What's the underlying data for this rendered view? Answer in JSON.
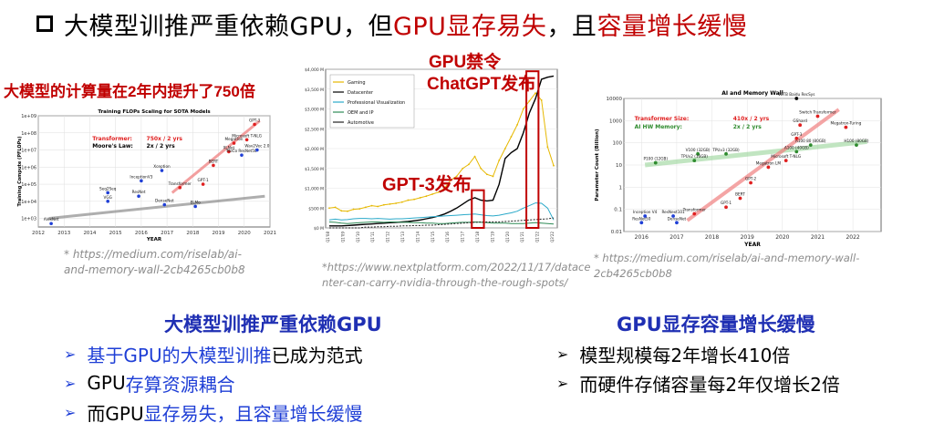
{
  "title": {
    "part1": "大模型训推严重依赖GPU，但",
    "part2": "GPU显存易失",
    "part3": "，且",
    "part4": "容量增长缓慢",
    "color_accent": "#c00000"
  },
  "left_figure": {
    "caption_top": "大模型的计算量在2年内提升了750倍",
    "citation_lines": [
      "* https://medium.com/riselab/ai-",
      "and-memory-wall-2cb4265cb0b8"
    ]
  },
  "center_figure": {
    "label_gpu_ban": "GPU禁令",
    "label_chatgpt": "ChatGPT发布",
    "label_gpt3": "GPT-3发布",
    "citation_lines": [
      "*https://www.nextplatform.com/2022/11/17/datace",
      "nter-can-carry-nvidia-through-the-rough-spots/"
    ]
  },
  "right_figure": {
    "citation": "* https://medium.com/riselab/ai-and-memory-wall-2cb4265cb0b8"
  },
  "left_section": {
    "heading": "大模型训推严重依赖GPU",
    "bullets": [
      {
        "blue": "基于GPU的大模型训推",
        "black": "已成为范式"
      },
      {
        "black": "GPU",
        "blue": "存算资源耦合"
      },
      {
        "black": "而GPU",
        "blue": "显存易失，且容量增长缓慢"
      }
    ]
  },
  "right_section": {
    "heading": "GPU显存容量增长缓慢",
    "bullets": [
      "模型规模每2年增长410倍",
      "而硬件存储容量每2年仅增长2倍"
    ]
  },
  "chart_data": [
    {
      "type": "scatter",
      "title": "Training FLOPs Scaling for SOTA Models",
      "xlabel": "YEAR",
      "ylabel": "Training Compute (PFLOPs)",
      "x_ticks": [
        "2012",
        "2013",
        "2014",
        "2015",
        "2016",
        "2017",
        "2018",
        "2019",
        "2020",
        "2021"
      ],
      "y_ticks": [
        "1e+03",
        "1e+04",
        "1e+05",
        "1e+06",
        "1e+07",
        "1e+08",
        "1e+09"
      ],
      "xlim": [
        2012,
        2021
      ],
      "ylim_exp": [
        2.5,
        9
      ],
      "annotations": [
        {
          "label": "Transformer:",
          "value": "750x / 2 yrs",
          "color": "#e02020"
        },
        {
          "label": "Moore's Law:",
          "value": "2x / 2 yrs",
          "color": "#000000"
        }
      ],
      "points": [
        {
          "name": "AlexNet",
          "x": 2012.5,
          "y": 2.7,
          "color": "#1f3fd6"
        },
        {
          "name": "VGG",
          "x": 2014.7,
          "y": 4.0,
          "color": "#1f3fd6"
        },
        {
          "name": "Seq2Seq",
          "x": 2014.7,
          "y": 4.5,
          "color": "#1f3fd6"
        },
        {
          "name": "ResNet",
          "x": 2015.9,
          "y": 4.3,
          "color": "#1f3fd6"
        },
        {
          "name": "InceptionV3",
          "x": 2016.0,
          "y": 5.2,
          "color": "#1f3fd6"
        },
        {
          "name": "Xception",
          "x": 2016.8,
          "y": 5.8,
          "color": "#1f3fd6"
        },
        {
          "name": "DenseNet",
          "x": 2016.9,
          "y": 3.8,
          "color": "#1f3fd6"
        },
        {
          "name": "ELMo",
          "x": 2018.1,
          "y": 3.7,
          "color": "#1f3fd6"
        },
        {
          "name": "Transformer",
          "x": 2017.5,
          "y": 4.8,
          "color": "#e02020"
        },
        {
          "name": "GPT-1",
          "x": 2018.4,
          "y": 5.0,
          "color": "#e02020"
        },
        {
          "name": "BERT",
          "x": 2018.8,
          "y": 6.1,
          "color": "#e02020"
        },
        {
          "name": "XLNet",
          "x": 2019.4,
          "y": 6.9,
          "color": "#e02020"
        },
        {
          "name": "Megatron",
          "x": 2019.6,
          "y": 7.4,
          "color": "#e02020"
        },
        {
          "name": "Microsoft T-NLG",
          "x": 2020.1,
          "y": 7.6,
          "color": "#e02020"
        },
        {
          "name": "GPT-3",
          "x": 2020.4,
          "y": 8.5,
          "color": "#e02020"
        },
        {
          "name": "MoCo ResNet50",
          "x": 2019.9,
          "y": 6.7,
          "color": "#1f3fd6"
        },
        {
          "name": "Wav2Vec 2.0",
          "x": 2020.5,
          "y": 7.0,
          "color": "#1f3fd6"
        }
      ]
    },
    {
      "type": "line",
      "x_ticks": [
        "Q1'08",
        "Q1'09",
        "Q1'10",
        "Q1'11",
        "Q1'12",
        "Q1'13",
        "Q1'14",
        "Q1'15",
        "Q1'16",
        "Q1'17",
        "Q1'18",
        "Q1'19",
        "Q1'20",
        "Q1'21",
        "Q1'22",
        "Q3'22"
      ],
      "y_ticks": [
        "$0 M",
        "$500 M",
        "$1,000 M",
        "$1,500 M",
        "$2,000 M",
        "$2,500 M",
        "$3,000 M",
        "$3,500 M",
        "$4,000 M"
      ],
      "ylim": [
        0,
        4000
      ],
      "series": [
        {
          "name": "Gaming",
          "color": "#e6b800",
          "values": [
            500,
            520,
            430,
            420,
            470,
            480,
            520,
            560,
            540,
            580,
            600,
            620,
            650,
            700,
            720,
            760,
            800,
            850,
            900,
            1000,
            1200,
            1300,
            1500,
            1600,
            1800,
            1500,
            1350,
            1300,
            1700,
            2000,
            2300,
            2600,
            3000,
            3200,
            3400,
            3220,
            2040,
            1570
          ]
        },
        {
          "name": "Datacenter",
          "color": "#000000",
          "values": [
            50,
            50,
            50,
            60,
            70,
            80,
            90,
            100,
            110,
            120,
            130,
            140,
            150,
            160,
            180,
            200,
            230,
            260,
            300,
            350,
            420,
            500,
            600,
            700,
            760,
            700,
            680,
            700,
            1100,
            1750,
            1900,
            2000,
            2400,
            2900,
            3260,
            3750,
            3800,
            3830
          ]
        },
        {
          "name": "Professional Visualization",
          "color": "#2aa9c9",
          "values": [
            200,
            220,
            200,
            210,
            230,
            240,
            240,
            230,
            240,
            230,
            220,
            230,
            230,
            240,
            250,
            260,
            270,
            280,
            290,
            300,
            310,
            320,
            330,
            340,
            350,
            330,
            310,
            300,
            320,
            350,
            380,
            420,
            500,
            560,
            630,
            620,
            500,
            200
          ]
        },
        {
          "name": "OEM and IP",
          "color": "#2e8b57",
          "values": [
            150,
            140,
            120,
            110,
            120,
            130,
            140,
            150,
            150,
            140,
            150,
            150,
            140,
            140,
            130,
            130,
            120,
            120,
            110,
            110,
            120,
            130,
            140,
            140,
            150,
            140,
            130,
            120,
            120,
            120,
            110,
            110,
            110,
            120,
            130,
            120,
            110,
            100
          ]
        },
        {
          "name": "Automotive",
          "color": "#222222",
          "values": [
            0,
            0,
            0,
            0,
            0,
            0,
            20,
            20,
            30,
            30,
            40,
            40,
            50,
            50,
            60,
            60,
            70,
            70,
            80,
            90,
            100,
            110,
            120,
            130,
            140,
            150,
            150,
            150,
            150,
            160,
            170,
            180,
            190,
            200,
            210,
            220,
            230,
            250
          ]
        }
      ]
    },
    {
      "type": "scatter",
      "title": "AI and Memory Wall",
      "xlabel": "YEAR",
      "ylabel": "Parameter Count (Billion)",
      "x_ticks": [
        "2016",
        "2017",
        "2018",
        "2019",
        "2020",
        "2021",
        "2022"
      ],
      "y_ticks": [
        "0.01",
        "0.1",
        "1",
        "10",
        "100",
        "1000",
        "10000"
      ],
      "xlim": [
        2015.5,
        2022.8
      ],
      "ylim_exp": [
        -2,
        4
      ],
      "annotations": [
        {
          "label": "Transformer Size:",
          "value": "410x / 2 yrs",
          "color": "#e02020"
        },
        {
          "label": "AI HW Memory:",
          "value": "2x / 2 yrs",
          "color": "#2e8b2e"
        }
      ],
      "points": [
        {
          "name": "ResNet50",
          "x": 2016.0,
          "y": -1.6,
          "color": "#1f3fd6"
        },
        {
          "name": "Inception V4",
          "x": 2016.1,
          "y": -1.3,
          "color": "#1f3fd6"
        },
        {
          "name": "ResNext101",
          "x": 2016.9,
          "y": -1.3,
          "color": "#1f3fd6"
        },
        {
          "name": "DenseNet",
          "x": 2017.0,
          "y": -1.6,
          "color": "#1f3fd6"
        },
        {
          "name": "P100 (12GB)",
          "x": 2016.4,
          "y": 1.1,
          "color": "#2e8b2e"
        },
        {
          "name": "V100 (32GB)",
          "x": 2017.6,
          "y": 1.5,
          "color": "#2e8b2e"
        },
        {
          "name": "TPUv2 (16GB)",
          "x": 2017.5,
          "y": 1.2,
          "color": "#2e8b2e"
        },
        {
          "name": "TPUv3 (32GB)",
          "x": 2018.4,
          "y": 1.5,
          "color": "#2e8b2e"
        },
        {
          "name": "A100 (40GB)",
          "x": 2020.4,
          "y": 1.6,
          "color": "#2e8b2e"
        },
        {
          "name": "A100 80 (80GB)",
          "x": 2020.8,
          "y": 1.9,
          "color": "#2e8b2e"
        },
        {
          "name": "H100 (80GB)",
          "x": 2022.1,
          "y": 1.9,
          "color": "#2e8b2e"
        },
        {
          "name": "Transformer",
          "x": 2017.5,
          "y": -1.2,
          "color": "#e02020"
        },
        {
          "name": "GPT-1",
          "x": 2018.4,
          "y": -0.9,
          "color": "#e02020"
        },
        {
          "name": "BERT",
          "x": 2018.8,
          "y": -0.5,
          "color": "#e02020"
        },
        {
          "name": "GPT-2",
          "x": 2019.1,
          "y": 0.2,
          "color": "#e02020"
        },
        {
          "name": "Megatron LM",
          "x": 2019.6,
          "y": 0.9,
          "color": "#e02020"
        },
        {
          "name": "Microsoft T-NLG",
          "x": 2020.1,
          "y": 1.2,
          "color": "#e02020"
        },
        {
          "name": "GPT-3",
          "x": 2020.4,
          "y": 2.2,
          "color": "#e02020"
        },
        {
          "name": "GShard",
          "x": 2020.5,
          "y": 2.8,
          "color": "#e02020"
        },
        {
          "name": "Switch Transformer",
          "x": 2021.0,
          "y": 3.2,
          "color": "#e02020"
        },
        {
          "name": "Megatron-Turing",
          "x": 2021.8,
          "y": 2.7,
          "color": "#e02020"
        },
        {
          "name": "10TB Baidu RecSys",
          "x": 2020.4,
          "y": 4.0,
          "color": "#000000"
        }
      ]
    }
  ]
}
